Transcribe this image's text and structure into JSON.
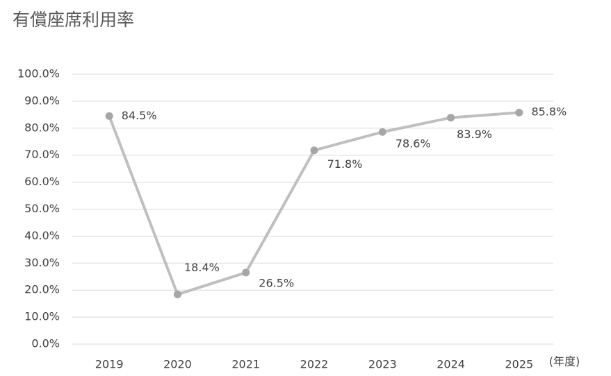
{
  "chart_data": {
    "type": "line",
    "title": "有償座席利用率",
    "x_label": "(年度)",
    "categories": [
      "2019",
      "2020",
      "2021",
      "2022",
      "2023",
      "2024",
      "2025"
    ],
    "series": [
      {
        "name": "有償座席利用率",
        "color": "#bfbfbf",
        "marker_color": "#a6a6a6",
        "values": [
          84.5,
          18.4,
          26.5,
          71.8,
          78.6,
          83.9,
          85.8
        ],
        "value_labels": [
          "84.5%",
          "18.4%",
          "26.5%",
          "71.8%",
          "78.6%",
          "83.9%",
          "85.8%"
        ]
      }
    ],
    "ylim": [
      0,
      100
    ],
    "yticks": [
      {
        "value": 0,
        "label": "0.0%"
      },
      {
        "value": 10,
        "label": "10.0%"
      },
      {
        "value": 20,
        "label": "20.0%"
      },
      {
        "value": 30,
        "label": "30.0%"
      },
      {
        "value": 40,
        "label": "40.0%"
      },
      {
        "value": 50,
        "label": "50.0%"
      },
      {
        "value": 60,
        "label": "60.0%"
      },
      {
        "value": 70,
        "label": "70.0%"
      },
      {
        "value": 80,
        "label": "80.0%"
      },
      {
        "value": 90,
        "label": "90.0%"
      },
      {
        "value": 100,
        "label": "100.0%"
      }
    ],
    "grid": true
  }
}
